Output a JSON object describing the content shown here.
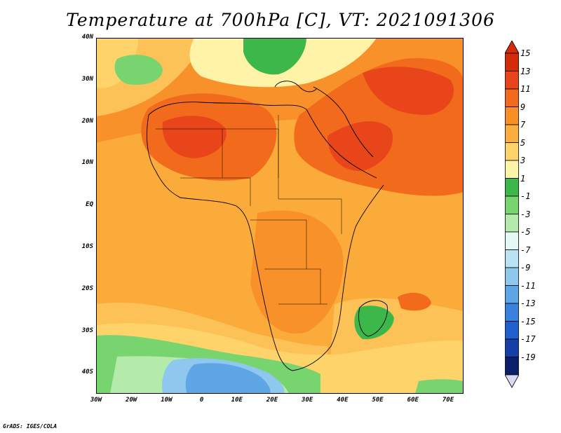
{
  "title": "Temperature at 700hPa [C], VT: 2021091306",
  "footer": "GrADS: IGES/COLA",
  "lat_labels": [
    "40N",
    "30N",
    "20N",
    "10N",
    "EQ",
    "10S",
    "20S",
    "30S",
    "40S"
  ],
  "lon_labels": [
    "30W",
    "20W",
    "10W",
    "0",
    "10E",
    "20E",
    "30E",
    "40E",
    "50E",
    "60E",
    "70E"
  ],
  "colorbar": {
    "labels": [
      "15",
      "13",
      "11",
      "9",
      "7",
      "5",
      "3",
      "1",
      "-1",
      "-3",
      "-5",
      "-7",
      "-9",
      "-11",
      "-13",
      "-15",
      "-17",
      "-19"
    ],
    "colors": [
      "#d62b0a",
      "#e8461a",
      "#f26a1c",
      "#f98f24",
      "#fcae3b",
      "#fdd36a",
      "#fef3a6",
      "#3cb84a",
      "#78d46e",
      "#b5ebaa",
      "#e6f8f6",
      "#b7e3f5",
      "#8ec8ee",
      "#5ea6e6",
      "#3a82df",
      "#1f5fd0",
      "#1440a8",
      "#0c1f6a"
    ],
    "below_color": "#d9d9f2"
  }
}
